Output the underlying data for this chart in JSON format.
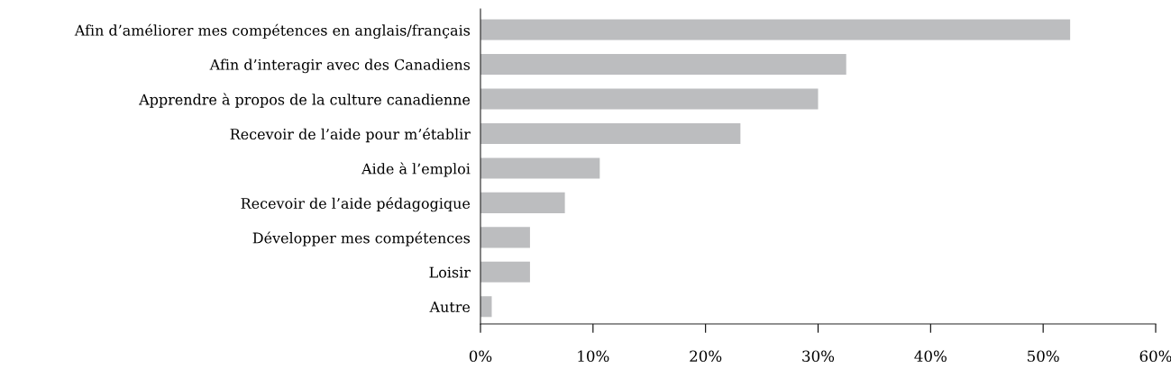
{
  "chart_data": {
    "type": "bar",
    "orientation": "horizontal",
    "categories": [
      "Afin d’améliorer mes compétences en anglais/français",
      "Afin d’interagir avec des Canadiens",
      "Apprendre à propos de la culture canadienne",
      "Recevoir de l’aide pour m’établir",
      "Aide à l’emploi",
      "Recevoir de l’aide pédagogique",
      "Développer mes compétences",
      "Loisir",
      "Autre"
    ],
    "values": [
      52.4,
      32.5,
      30.0,
      23.1,
      10.6,
      7.5,
      4.4,
      4.4,
      1.0
    ],
    "color": "#bcbdbf",
    "xlim": [
      0,
      60
    ],
    "xticks": [
      {
        "value": 0,
        "label": "0%"
      },
      {
        "value": 10,
        "label": "10%"
      },
      {
        "value": 20,
        "label": "20%"
      },
      {
        "value": 30,
        "label": "30%"
      },
      {
        "value": 40,
        "label": "40%"
      },
      {
        "value": 50,
        "label": "50%"
      },
      {
        "value": 60,
        "label": "60%"
      }
    ],
    "grid": false
  }
}
